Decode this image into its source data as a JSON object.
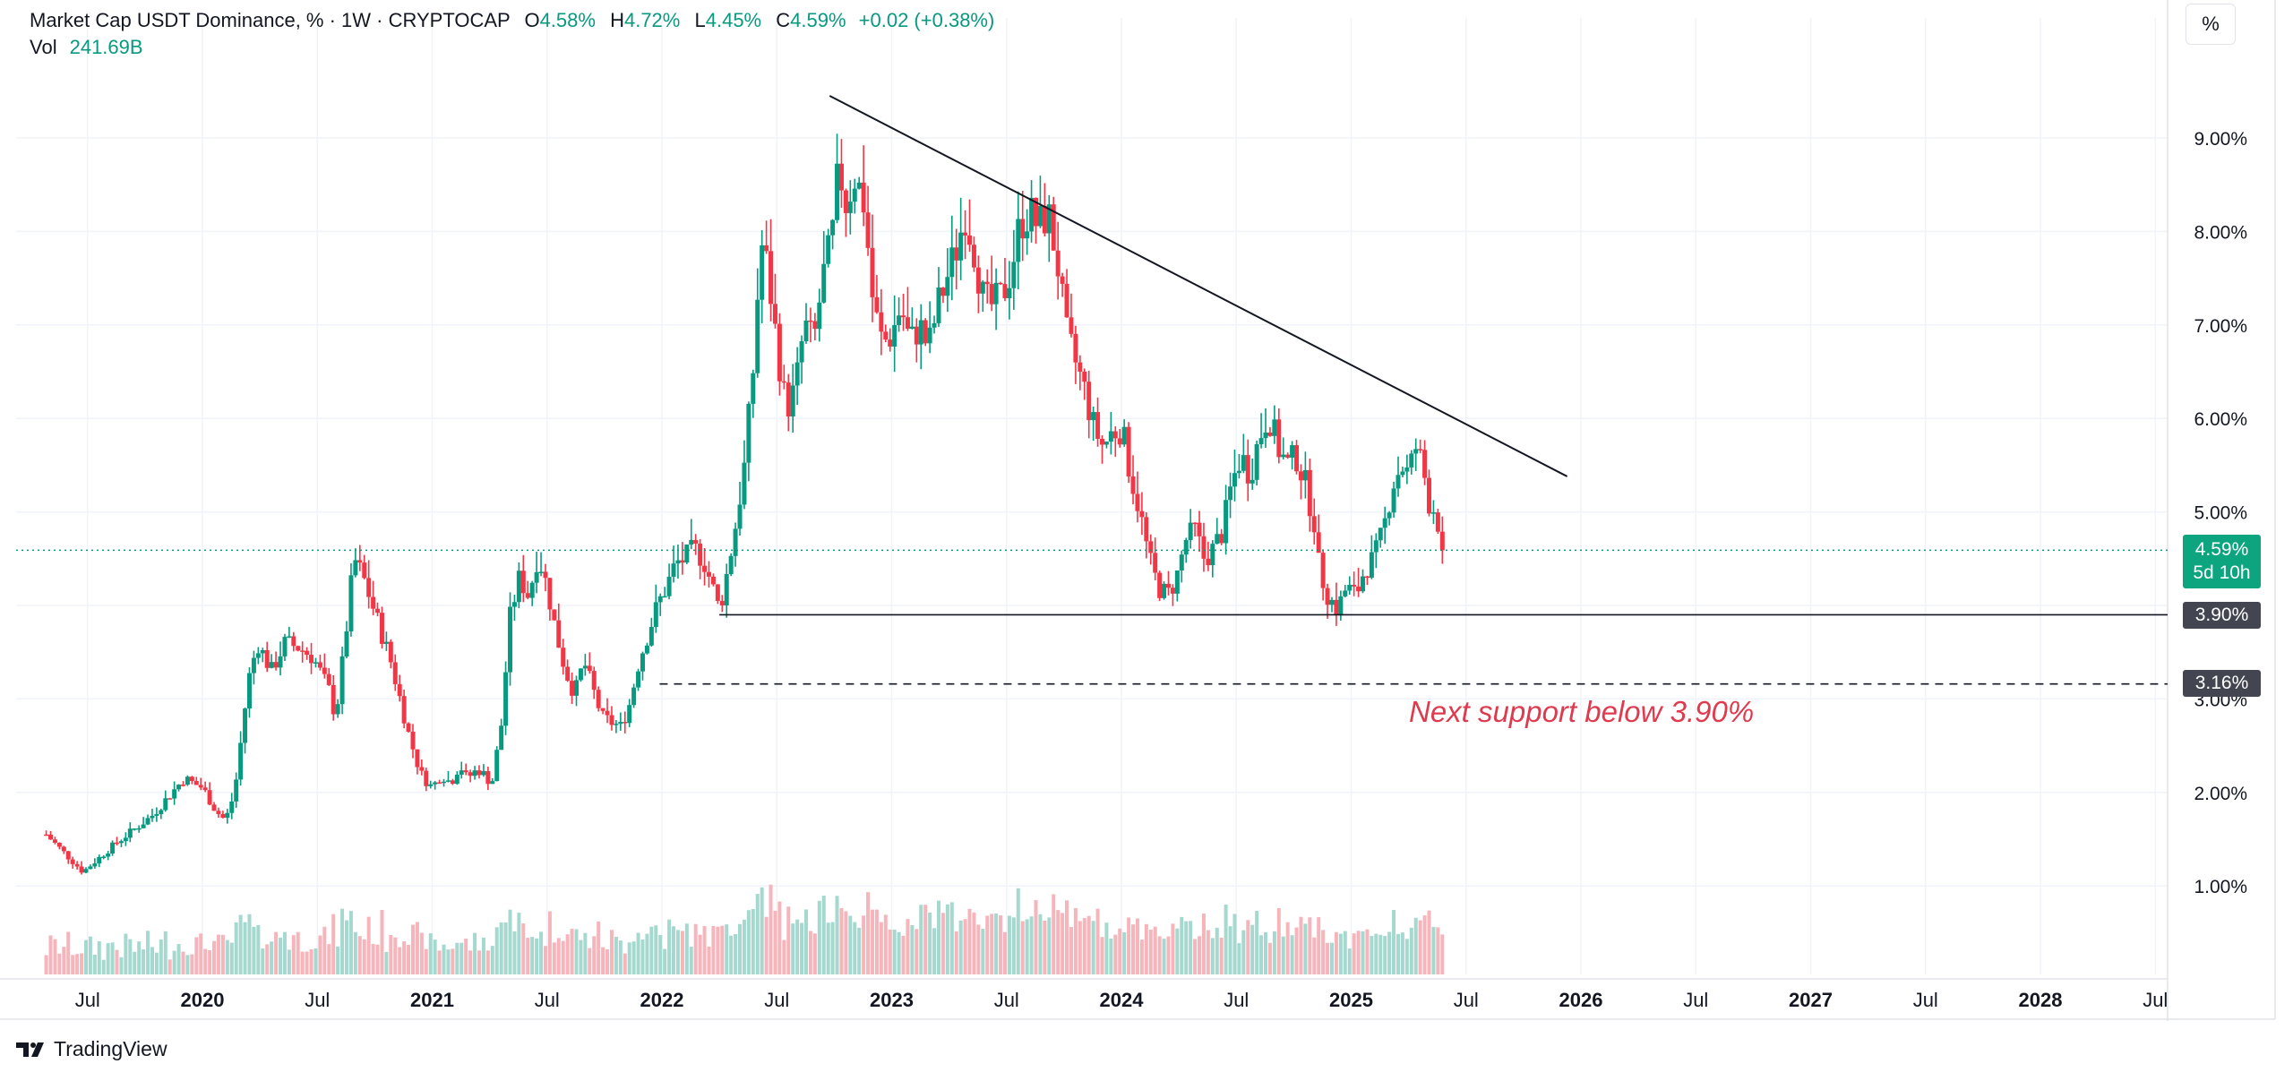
{
  "header": {
    "title": "Market Cap USDT Dominance, % · 1W · CRYPTOCAP",
    "open_label": "O",
    "open": "4.58%",
    "high_label": "H",
    "high": "4.72%",
    "low_label": "L",
    "low": "4.45%",
    "close_label": "C",
    "close": "4.59%",
    "change": "+0.02 (+0.38%)",
    "vol_label": "Vol",
    "vol": "241.69B"
  },
  "scale_button": "%",
  "brand": "TradingView",
  "annotation": "Next support below 3.90%",
  "price_badge": {
    "value": "4.59%",
    "countdown": "5d 10h"
  },
  "level_badges": {
    "support": "3.90%",
    "next_support": "3.16%"
  },
  "colors": {
    "up": "#089981",
    "down": "#f23645",
    "annotation": "#e03a4e",
    "badge": "#0ca57f",
    "level_badge": "#434651"
  },
  "chart_data": {
    "type": "candlestick",
    "title": "Market Cap USDT Dominance, % · 1W · CRYPTOCAP",
    "interval": "1W",
    "y_axis": {
      "unit": "%",
      "ticks": [
        "9.00%",
        "8.00%",
        "7.00%",
        "6.00%",
        "5.00%",
        "3.00%",
        "2.00%",
        "1.00%"
      ],
      "ylim": [
        0.0,
        9.7
      ],
      "position": "right"
    },
    "x_axis": {
      "ticks": [
        "Jul",
        "2020",
        "Jul",
        "2021",
        "Jul",
        "2022",
        "Jul",
        "2023",
        "Jul",
        "2024",
        "Jul",
        "2025",
        "Jul",
        "2026",
        "Jul",
        "2027",
        "Jul",
        "2028",
        "Jul"
      ],
      "xlim": [
        2019.31,
        2028.53
      ]
    },
    "grid": true,
    "last_price": 4.59,
    "close_path": [
      [
        2019.32,
        1.55
      ],
      [
        2019.4,
        1.35
      ],
      [
        2019.48,
        1.15
      ],
      [
        2019.55,
        1.3
      ],
      [
        2019.62,
        1.45
      ],
      [
        2019.7,
        1.6
      ],
      [
        2019.78,
        1.75
      ],
      [
        2019.85,
        1.95
      ],
      [
        2019.92,
        2.15
      ],
      [
        2020.0,
        2.05
      ],
      [
        2020.06,
        1.8
      ],
      [
        2020.1,
        1.7
      ],
      [
        2020.14,
        2.0
      ],
      [
        2020.17,
        2.6
      ],
      [
        2020.2,
        3.2
      ],
      [
        2020.24,
        3.6
      ],
      [
        2020.3,
        3.3
      ],
      [
        2020.36,
        3.6
      ],
      [
        2020.42,
        3.55
      ],
      [
        2020.48,
        3.45
      ],
      [
        2020.55,
        3.1
      ],
      [
        2020.58,
        2.8
      ],
      [
        2020.62,
        3.6
      ],
      [
        2020.66,
        4.5
      ],
      [
        2020.7,
        4.3
      ],
      [
        2020.74,
        4.0
      ],
      [
        2020.78,
        3.7
      ],
      [
        2020.82,
        3.4
      ],
      [
        2020.86,
        3.0
      ],
      [
        2020.9,
        2.6
      ],
      [
        2020.95,
        2.2
      ],
      [
        2021.0,
        2.05
      ],
      [
        2021.04,
        2.2
      ],
      [
        2021.08,
        2.1
      ],
      [
        2021.12,
        2.3
      ],
      [
        2021.15,
        2.15
      ],
      [
        2021.2,
        2.25
      ],
      [
        2021.26,
        2.1
      ],
      [
        2021.3,
        2.7
      ],
      [
        2021.34,
        3.9
      ],
      [
        2021.38,
        4.3
      ],
      [
        2021.42,
        4.1
      ],
      [
        2021.46,
        4.55
      ],
      [
        2021.5,
        4.2
      ],
      [
        2021.54,
        3.7
      ],
      [
        2021.58,
        3.3
      ],
      [
        2021.62,
        3.05
      ],
      [
        2021.66,
        3.4
      ],
      [
        2021.7,
        3.1
      ],
      [
        2021.74,
        2.8
      ],
      [
        2021.78,
        2.75
      ],
      [
        2021.82,
        2.7
      ],
      [
        2021.86,
        2.95
      ],
      [
        2021.9,
        3.4
      ],
      [
        2021.94,
        3.7
      ],
      [
        2021.98,
        4.0
      ],
      [
        2022.02,
        4.2
      ],
      [
        2022.06,
        4.45
      ],
      [
        2022.1,
        4.5
      ],
      [
        2022.14,
        4.6
      ],
      [
        2022.18,
        4.5
      ],
      [
        2022.22,
        4.2
      ],
      [
        2022.25,
        3.95
      ],
      [
        2022.28,
        4.3
      ],
      [
        2022.32,
        4.85
      ],
      [
        2022.36,
        5.5
      ],
      [
        2022.4,
        6.6
      ],
      [
        2022.43,
        7.9
      ],
      [
        2022.46,
        7.6
      ],
      [
        2022.5,
        6.8
      ],
      [
        2022.54,
        6.1
      ],
      [
        2022.58,
        6.3
      ],
      [
        2022.62,
        7.0
      ],
      [
        2022.66,
        6.8
      ],
      [
        2022.7,
        7.5
      ],
      [
        2022.74,
        7.9
      ],
      [
        2022.77,
        8.7
      ],
      [
        2022.8,
        8.3
      ],
      [
        2022.84,
        8.6
      ],
      [
        2022.88,
        8.3
      ],
      [
        2022.92,
        7.2
      ],
      [
        2022.96,
        6.8
      ],
      [
        2023.0,
        6.9
      ],
      [
        2023.04,
        7.2
      ],
      [
        2023.08,
        6.8
      ],
      [
        2023.12,
        7.0
      ],
      [
        2023.16,
        6.75
      ],
      [
        2023.2,
        7.2
      ],
      [
        2023.24,
        7.5
      ],
      [
        2023.28,
        7.8
      ],
      [
        2023.32,
        8.2
      ],
      [
        2023.36,
        7.8
      ],
      [
        2023.4,
        7.25
      ],
      [
        2023.44,
        7.2
      ],
      [
        2023.48,
        7.3
      ],
      [
        2023.52,
        7.6
      ],
      [
        2023.56,
        8.1
      ],
      [
        2023.6,
        8.2
      ],
      [
        2023.64,
        8.05
      ],
      [
        2023.68,
        8.2
      ],
      [
        2023.72,
        7.7
      ],
      [
        2023.76,
        6.9
      ],
      [
        2023.8,
        6.6
      ],
      [
        2023.84,
        6.3
      ],
      [
        2023.88,
        5.9
      ],
      [
        2023.92,
        5.7
      ],
      [
        2023.96,
        5.85
      ],
      [
        2024.0,
        5.9
      ],
      [
        2024.04,
        5.4
      ],
      [
        2024.08,
        5.0
      ],
      [
        2024.12,
        4.5
      ],
      [
        2024.16,
        4.2
      ],
      [
        2024.2,
        4.1
      ],
      [
        2024.24,
        4.3
      ],
      [
        2024.28,
        4.7
      ],
      [
        2024.32,
        4.8
      ],
      [
        2024.36,
        4.5
      ],
      [
        2024.4,
        4.6
      ],
      [
        2024.44,
        4.8
      ],
      [
        2024.48,
        5.3
      ],
      [
        2024.52,
        5.6
      ],
      [
        2024.56,
        5.4
      ],
      [
        2024.6,
        5.8
      ],
      [
        2024.64,
        6.05
      ],
      [
        2024.68,
        5.7
      ],
      [
        2024.72,
        5.5
      ],
      [
        2024.76,
        5.6
      ],
      [
        2024.8,
        5.3
      ],
      [
        2024.84,
        4.9
      ],
      [
        2024.86,
        4.4
      ],
      [
        2024.9,
        4.1
      ],
      [
        2024.94,
        3.95
      ],
      [
        2024.98,
        4.2
      ],
      [
        2025.02,
        4.1
      ],
      [
        2025.06,
        4.4
      ],
      [
        2025.1,
        4.5
      ],
      [
        2025.14,
        4.8
      ],
      [
        2025.18,
        5.3
      ],
      [
        2025.22,
        5.5
      ],
      [
        2025.25,
        5.4
      ],
      [
        2025.28,
        5.7
      ],
      [
        2025.31,
        5.5
      ],
      [
        2025.34,
        5.1
      ],
      [
        2025.37,
        5.0
      ],
      [
        2025.4,
        4.59
      ]
    ],
    "trendline": {
      "from": [
        2022.73,
        9.45
      ],
      "to": [
        2025.94,
        5.38
      ]
    },
    "support_line": {
      "value": 3.9,
      "from_x": 2022.25,
      "label": "3.90%"
    },
    "next_support_line": {
      "value": 3.16,
      "from_x": 2021.99,
      "label": "3.16%",
      "style": "dashed"
    },
    "current_price_line": {
      "value": 4.59,
      "style": "dotted"
    }
  }
}
